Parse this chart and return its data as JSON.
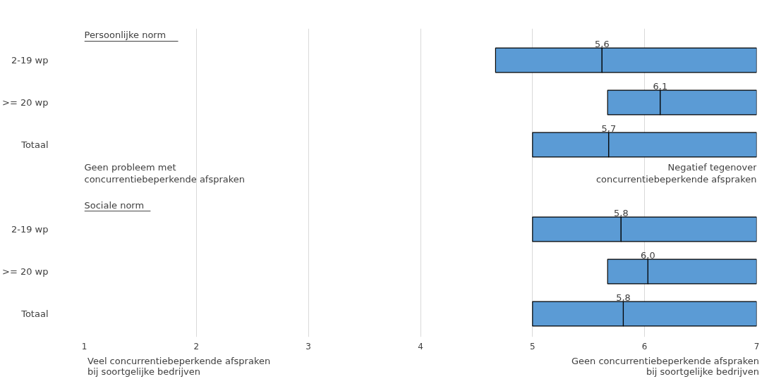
{
  "chart_data": {
    "type": "box",
    "orientation": "horizontal",
    "categories": [
      "2-19 wp",
      ">= 20 wp",
      "Totaal",
      null,
      "2-19 wp",
      ">= 20 wp",
      "Totaal"
    ],
    "boxes": [
      {
        "low": 4.67,
        "q1": 4.67,
        "median": 5.62,
        "q3": 7,
        "high": 7
      },
      {
        "low": 5.67,
        "q1": 5.67,
        "median": 6.14,
        "q3": 7,
        "high": 7
      },
      {
        "low": 5.0,
        "q1": 5.0,
        "median": 5.68,
        "q3": 7,
        "high": 7
      },
      null,
      {
        "low": 5.0,
        "q1": 5.0,
        "median": 5.79,
        "q3": 7,
        "high": 7
      },
      {
        "low": 5.67,
        "q1": 5.67,
        "median": 6.03,
        "q3": 7,
        "high": 7
      },
      {
        "low": 5.0,
        "q1": 5.0,
        "median": 5.81,
        "q3": 7,
        "high": 7
      }
    ],
    "value_labels": [
      "5,6",
      "6,1",
      "5,7",
      null,
      "5,8",
      "6,0",
      "5,8"
    ],
    "color": "#5b9bd5",
    "xlim": [
      1,
      7
    ],
    "xticks": [
      1,
      2,
      3,
      4,
      5,
      6,
      7
    ],
    "grid": "x",
    "annotations": [
      "Persoonlijke norm",
      "Geen probleem met\nconcurrentiebeperkende afspraken",
      "Negatief tegenover\nconcurrentiebeperkende afspraken",
      "Sociale norm",
      "Veel concurrentiebeperkende afspraken\nbij soortgelijke bedrijven",
      "Geen concurrentiebeperkende afspraken\nbij soortgelijke bedrijven"
    ]
  }
}
